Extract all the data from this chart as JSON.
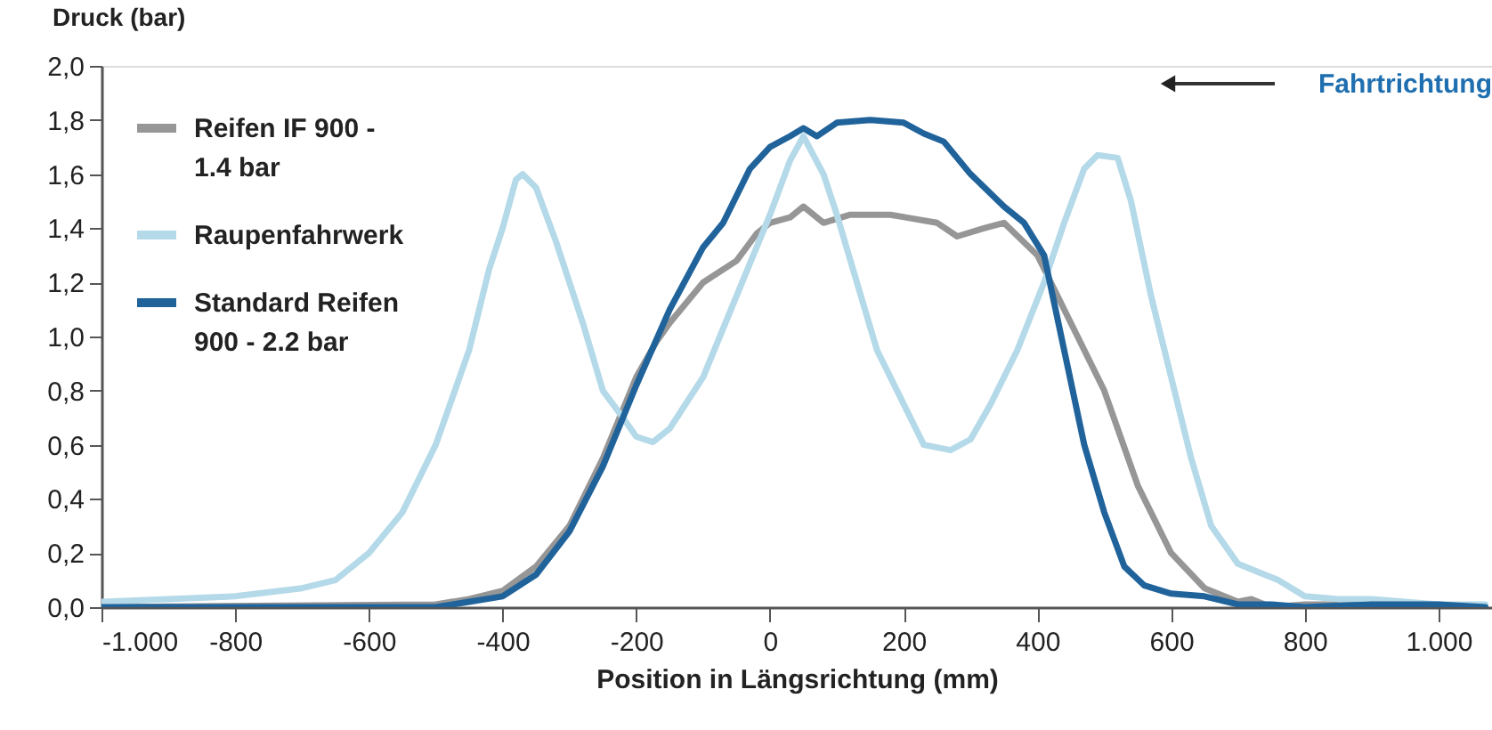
{
  "chart_data": {
    "type": "line",
    "xlabel": "Position in Längsrichtung (mm)",
    "ylabel": "Druck (bar)",
    "annotations": [
      "Fahrtrichtung"
    ],
    "xlim": [
      -1000,
      1080
    ],
    "ylim": [
      0,
      2.0
    ],
    "xticks": [
      {
        "value": -1000,
        "label": "-1.000"
      },
      {
        "value": -800,
        "label": "-800"
      },
      {
        "value": -600,
        "label": "-600"
      },
      {
        "value": -400,
        "label": "-400"
      },
      {
        "value": -200,
        "label": "-200"
      },
      {
        "value": 0,
        "label": "0"
      },
      {
        "value": 200,
        "label": "200"
      },
      {
        "value": 400,
        "label": "400"
      },
      {
        "value": 600,
        "label": "600"
      },
      {
        "value": 800,
        "label": "800"
      },
      {
        "value": 1000,
        "label": "1.000"
      }
    ],
    "yticks": [
      {
        "value": 0,
        "label": "0,0"
      },
      {
        "value": 0.2,
        "label": "0,2"
      },
      {
        "value": 0.4,
        "label": "0,4"
      },
      {
        "value": 0.6,
        "label": "0,6"
      },
      {
        "value": 0.8,
        "label": "0,8"
      },
      {
        "value": 1.0,
        "label": "1,0"
      },
      {
        "value": 1.2,
        "label": "1,2"
      },
      {
        "value": 1.4,
        "label": "1,4"
      },
      {
        "value": 1.6,
        "label": "1,6"
      },
      {
        "value": 1.8,
        "label": "1,8"
      },
      {
        "value": 2.0,
        "label": "2,0"
      }
    ],
    "grid": false,
    "legend": "top left",
    "marker": "none",
    "line_style": "solid",
    "series": [
      {
        "name": "Reifen IF 900 - 1.4 bar",
        "color": "#969696",
        "x": [
          -1000,
          -500,
          -450,
          -400,
          -350,
          -300,
          -250,
          -200,
          -170,
          -150,
          -100,
          -50,
          -20,
          0,
          30,
          50,
          80,
          120,
          180,
          250,
          280,
          320,
          350,
          400,
          450,
          500,
          550,
          600,
          650,
          700,
          720,
          750,
          800,
          850,
          900,
          1000,
          1070
        ],
        "values": [
          0,
          0.01,
          0.03,
          0.06,
          0.15,
          0.3,
          0.55,
          0.85,
          0.98,
          1.05,
          1.2,
          1.28,
          1.38,
          1.42,
          1.44,
          1.48,
          1.42,
          1.45,
          1.45,
          1.42,
          1.37,
          1.4,
          1.42,
          1.3,
          1.05,
          0.8,
          0.45,
          0.2,
          0.07,
          0.02,
          0.03,
          0,
          0.01,
          0.01,
          0.01,
          0,
          0
        ]
      },
      {
        "name": "Raupenfahrwerk",
        "color": "#b4d9e8",
        "x": [
          -1000,
          -900,
          -800,
          -700,
          -650,
          -600,
          -550,
          -500,
          -450,
          -420,
          -400,
          -380,
          -370,
          -350,
          -320,
          -280,
          -250,
          -220,
          -200,
          -175,
          -150,
          -100,
          -50,
          0,
          30,
          50,
          80,
          100,
          130,
          160,
          200,
          230,
          270,
          300,
          330,
          370,
          410,
          440,
          470,
          490,
          520,
          540,
          570,
          600,
          630,
          660,
          700,
          730,
          760,
          800,
          850,
          900,
          950,
          1000,
          1070
        ],
        "values": [
          0.02,
          0.03,
          0.04,
          0.07,
          0.1,
          0.2,
          0.35,
          0.6,
          0.95,
          1.25,
          1.4,
          1.58,
          1.6,
          1.55,
          1.35,
          1.05,
          0.8,
          0.7,
          0.63,
          0.61,
          0.66,
          0.85,
          1.15,
          1.45,
          1.65,
          1.74,
          1.6,
          1.45,
          1.2,
          0.95,
          0.75,
          0.6,
          0.58,
          0.62,
          0.75,
          0.95,
          1.2,
          1.42,
          1.62,
          1.67,
          1.66,
          1.5,
          1.15,
          0.85,
          0.55,
          0.3,
          0.16,
          0.13,
          0.1,
          0.04,
          0.03,
          0.03,
          0.02,
          0.01,
          0.01
        ]
      },
      {
        "name": "Standard Reifen 900 - 2.2 bar",
        "color": "#20639b",
        "x": [
          -1000,
          -500,
          -450,
          -400,
          -350,
          -300,
          -250,
          -200,
          -150,
          -100,
          -70,
          -30,
          0,
          30,
          50,
          70,
          100,
          150,
          200,
          230,
          260,
          300,
          350,
          380,
          410,
          440,
          470,
          500,
          530,
          560,
          600,
          650,
          700,
          750,
          800,
          900,
          1000,
          1070
        ],
        "values": [
          0,
          0,
          0.02,
          0.04,
          0.12,
          0.28,
          0.52,
          0.82,
          1.1,
          1.33,
          1.42,
          1.62,
          1.7,
          1.74,
          1.77,
          1.74,
          1.79,
          1.8,
          1.79,
          1.75,
          1.72,
          1.6,
          1.48,
          1.42,
          1.3,
          0.95,
          0.6,
          0.35,
          0.15,
          0.08,
          0.05,
          0.04,
          0.01,
          0.01,
          0,
          0.01,
          0.01,
          0
        ]
      }
    ]
  }
}
